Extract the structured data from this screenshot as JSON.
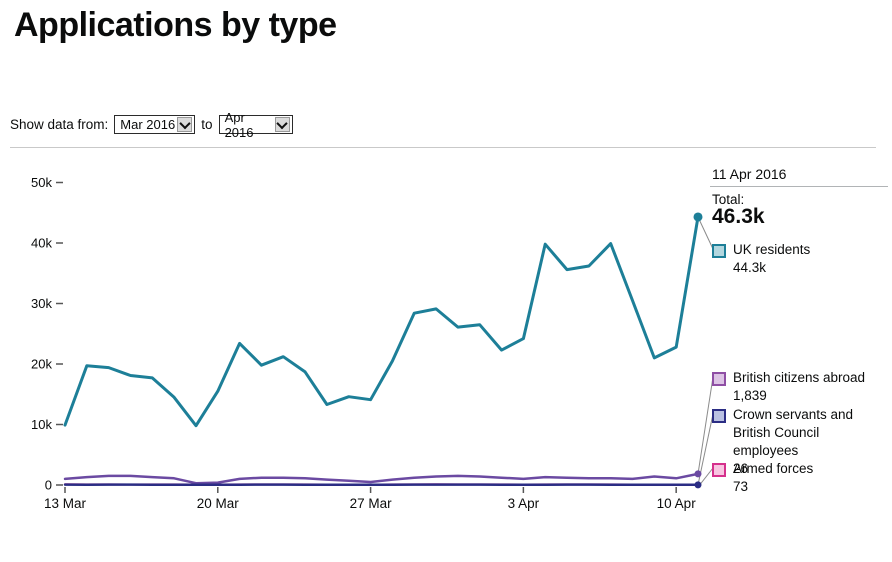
{
  "page_title": "Applications by type",
  "controls": {
    "label": "Show data from:",
    "from_value": "Mar 2016",
    "to_label": "to",
    "to_value": "Apr 2016"
  },
  "tooltip": {
    "date": "11 Apr 2016",
    "total_label": "Total:",
    "total_value": "46.3k"
  },
  "legend": {
    "items": [
      {
        "label": "UK residents",
        "value": "44.3k",
        "color_border": "#1d7f98",
        "color_fill": "#b3d7df"
      },
      {
        "label": "British citizens abroad",
        "value": "1,839",
        "color_border": "#8f4fa5",
        "color_fill": "#ddc4e5"
      },
      {
        "label": "Crown servants and British Council employees",
        "value": "26",
        "color_border": "#2b2d84",
        "color_fill": "#bac1e2"
      },
      {
        "label": "Armed forces",
        "value": "73",
        "color_border": "#d5308c",
        "color_fill": "#f8c5e1"
      }
    ]
  },
  "chart_data": {
    "type": "line",
    "title": "Applications by type",
    "x_unit": "day",
    "x_start": "13 Mar 2016",
    "x_end": "11 Apr 2016",
    "ylim": [
      0,
      50000
    ],
    "grid": false,
    "legend_position": "right",
    "xticks": [
      {
        "i": 0,
        "label": "13 Mar"
      },
      {
        "i": 7,
        "label": "20 Mar"
      },
      {
        "i": 14,
        "label": "27 Mar"
      },
      {
        "i": 21,
        "label": "3 Apr"
      },
      {
        "i": 28,
        "label": "10 Apr"
      }
    ],
    "yticks": [
      {
        "v": 0,
        "label": "0"
      },
      {
        "v": 10000,
        "label": "10k"
      },
      {
        "v": 20000,
        "label": "20k"
      },
      {
        "v": 30000,
        "label": "30k"
      },
      {
        "v": 40000,
        "label": "40k"
      },
      {
        "v": 50000,
        "label": "50k"
      }
    ],
    "series": [
      {
        "name": "UK residents",
        "color": "#1d7f98",
        "width": 3,
        "end_dot": true,
        "dot_r": 4.5,
        "values": [
          9900,
          19700,
          19400,
          18100,
          17700,
          14500,
          9800,
          15500,
          23400,
          19800,
          21200,
          18700,
          13300,
          14600,
          14100,
          20500,
          28400,
          29100,
          26100,
          26500,
          22300,
          24200,
          39800,
          35600,
          36200,
          39900,
          30500,
          21000,
          22800,
          44300
        ]
      },
      {
        "name": "British citizens abroad",
        "color": "#6b4aa2",
        "width": 2.5,
        "end_dot": true,
        "dot_r": 3.5,
        "values": [
          1000,
          1300,
          1500,
          1500,
          1300,
          1100,
          300,
          400,
          1000,
          1200,
          1200,
          1100,
          900,
          700,
          500,
          900,
          1200,
          1400,
          1500,
          1400,
          1200,
          1000,
          1300,
          1200,
          1100,
          1100,
          1000,
          1400,
          1100,
          1839
        ]
      },
      {
        "name": "Armed forces",
        "color": "#d5308c",
        "width": 2,
        "end_dot": false,
        "dot_r": 0,
        "values": [
          110,
          100,
          95,
          90,
          100,
          95,
          80,
          85,
          100,
          105,
          100,
          95,
          90,
          85,
          80,
          95,
          105,
          110,
          105,
          100,
          95,
          90,
          100,
          105,
          100,
          95,
          90,
          85,
          80,
          73
        ]
      },
      {
        "name": "Crown servants and British Council employees",
        "color": "#2b2d84",
        "width": 2.5,
        "end_dot": true,
        "dot_r": 3.5,
        "values": [
          60,
          55,
          58,
          62,
          50,
          45,
          40,
          42,
          55,
          60,
          58,
          52,
          48,
          45,
          40,
          50,
          62,
          65,
          60,
          58,
          52,
          48,
          55,
          60,
          58,
          55,
          50,
          45,
          40,
          26
        ]
      }
    ]
  }
}
